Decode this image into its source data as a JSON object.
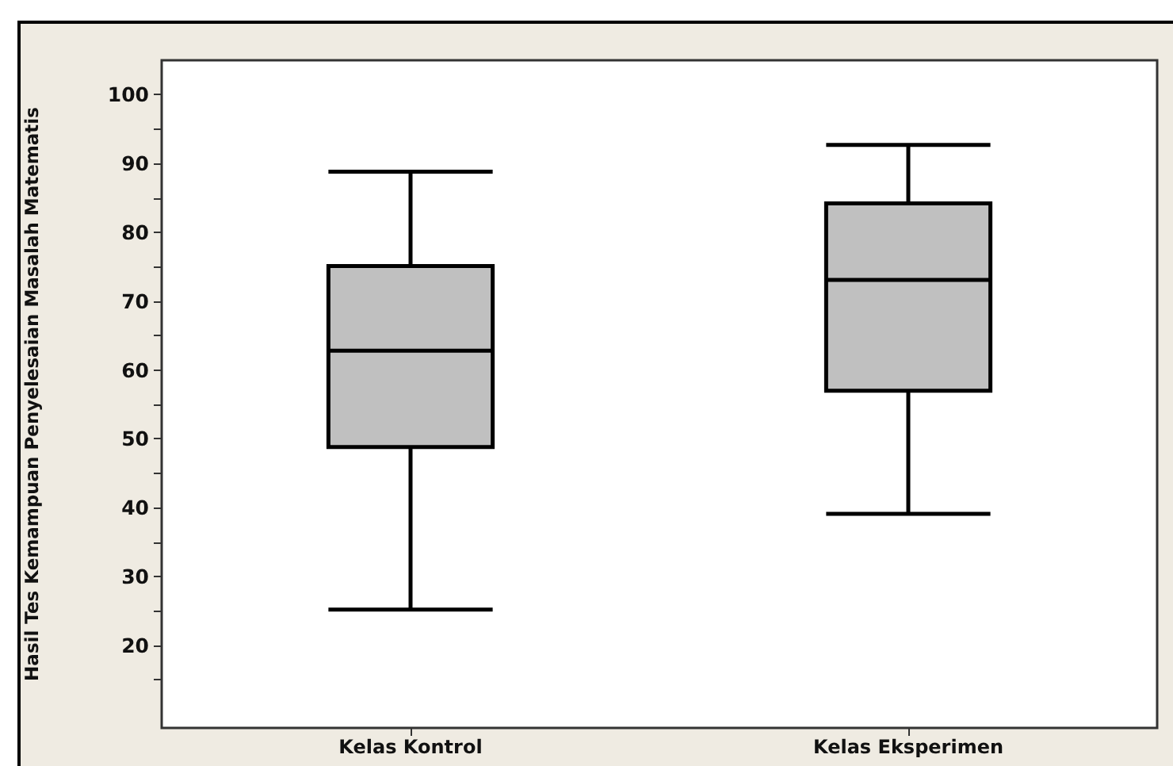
{
  "chart_data": {
    "type": "box",
    "ylabel": "Hasil Tes Kemampuan Penyelesaian Masalah Matematis",
    "categories": [
      "Kelas Kontrol",
      "Kelas Eksperimen"
    ],
    "series": [
      {
        "color": "#c0c0c0",
        "boxes": [
          {
            "low": 25.2,
            "q1": 48.8,
            "median": 62.8,
            "q3": 75.1,
            "high": 88.8
          },
          {
            "low": 39.1,
            "q1": 57.0,
            "median": 73.1,
            "q3": 84.2,
            "high": 92.7
          }
        ]
      }
    ],
    "ylim": [
      8,
      105
    ],
    "yticks": [
      {
        "value": 15,
        "label": null
      },
      20,
      {
        "value": 25,
        "label": null
      },
      30,
      {
        "value": 35,
        "label": null
      },
      40,
      {
        "value": 45,
        "label": null
      },
      50,
      {
        "value": 55,
        "label": null
      },
      60,
      {
        "value": 65,
        "label": null
      },
      70,
      {
        "value": 75,
        "label": null
      },
      80,
      {
        "value": 85,
        "label": null
      },
      90,
      {
        "value": 95,
        "label": null
      },
      100
    ]
  }
}
